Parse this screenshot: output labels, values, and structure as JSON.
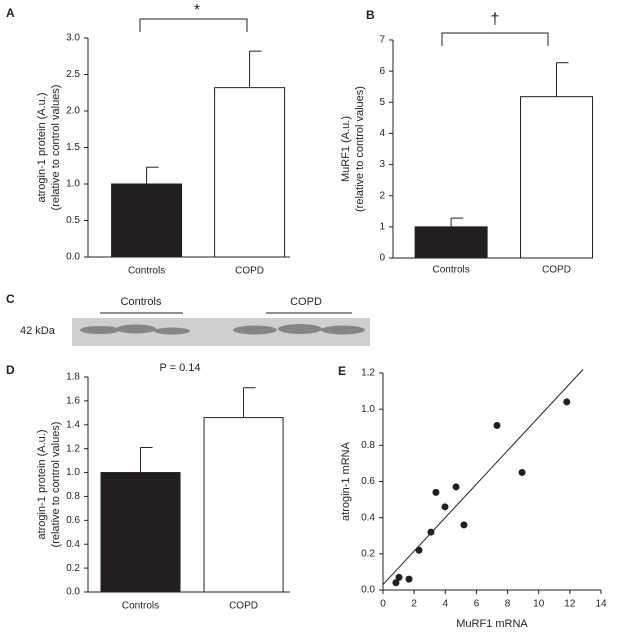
{
  "chart_data": [
    {
      "type": "bar",
      "panel": "A",
      "ylabel": [
        "atrogin-1 protein (A.u.)",
        "(relative to control values)"
      ],
      "categories": [
        "Controls",
        "COPD"
      ],
      "values": [
        1.0,
        2.32
      ],
      "errors": [
        0.23,
        0.5
      ],
      "colors": [
        "#231f20",
        "#ffffff"
      ],
      "ylim": [
        0,
        3
      ],
      "yticks": [
        {
          "value": 0,
          "label": "0.0"
        },
        0.5,
        {
          "value": 1,
          "label": "1.0"
        },
        1.5,
        {
          "value": 2,
          "label": "2.0"
        },
        2.5,
        {
          "value": 3,
          "label": "3.0"
        }
      ],
      "annotation": "*"
    },
    {
      "type": "bar",
      "panel": "B",
      "ylabel": [
        "MuRF1 (A.u.)",
        "(relative to control values)"
      ],
      "categories": [
        "Controls",
        "COPD"
      ],
      "values": [
        1.0,
        5.18
      ],
      "errors": [
        0.28,
        1.09
      ],
      "colors": [
        "#231f20",
        "#ffffff"
      ],
      "ylim": [
        0,
        7
      ],
      "yticks": [
        0,
        1,
        2,
        3,
        4,
        5,
        6,
        7
      ],
      "annotation": "†"
    },
    {
      "type": "bar",
      "panel": "D",
      "ylabel": [
        "atrogin-1 protein (A.u.)",
        "(relative to control values)"
      ],
      "categories": [
        "Controls",
        "COPD"
      ],
      "values": [
        1.0,
        1.46
      ],
      "errors": [
        0.21,
        0.25
      ],
      "colors": [
        "#231f20",
        "#ffffff"
      ],
      "ylim": [
        0,
        1.8
      ],
      "yticks": [
        {
          "value": 0,
          "label": "0.0"
        },
        0.2,
        0.4,
        0.6,
        0.8,
        {
          "value": 1,
          "label": "1.0"
        },
        1.2,
        1.4,
        1.6,
        1.8
      ],
      "annotation": "P = 0.14"
    },
    {
      "type": "scatter",
      "panel": "E",
      "xlabel": "MuRF1 mRNA",
      "ylabel": "atrogin-1 mRNA",
      "x": [
        0.83,
        1.03,
        1.67,
        2.31,
        3.08,
        3.4,
        3.98,
        4.69,
        5.2,
        7.32,
        8.93,
        11.8
      ],
      "y": [
        0.04,
        0.07,
        0.06,
        0.22,
        0.32,
        0.54,
        0.46,
        0.57,
        0.36,
        0.91,
        0.65,
        1.04
      ],
      "color": "#231f20",
      "fit": {
        "x": [
          0,
          12.85
        ],
        "y": [
          0.03,
          1.22
        ]
      },
      "xlim": [
        0,
        14
      ],
      "xticks": [
        0,
        2,
        4,
        6,
        8,
        10,
        12,
        14
      ],
      "ylim": [
        0,
        1.2
      ],
      "yticks": [
        {
          "value": 0,
          "label": "0.0"
        },
        0.2,
        0.4,
        0.6,
        0.8,
        {
          "value": 1,
          "label": "1.0"
        },
        1.2
      ]
    }
  ],
  "blot": {
    "panel": "C",
    "groups": [
      "Controls",
      "COPD"
    ],
    "marker": "42 kDa"
  }
}
